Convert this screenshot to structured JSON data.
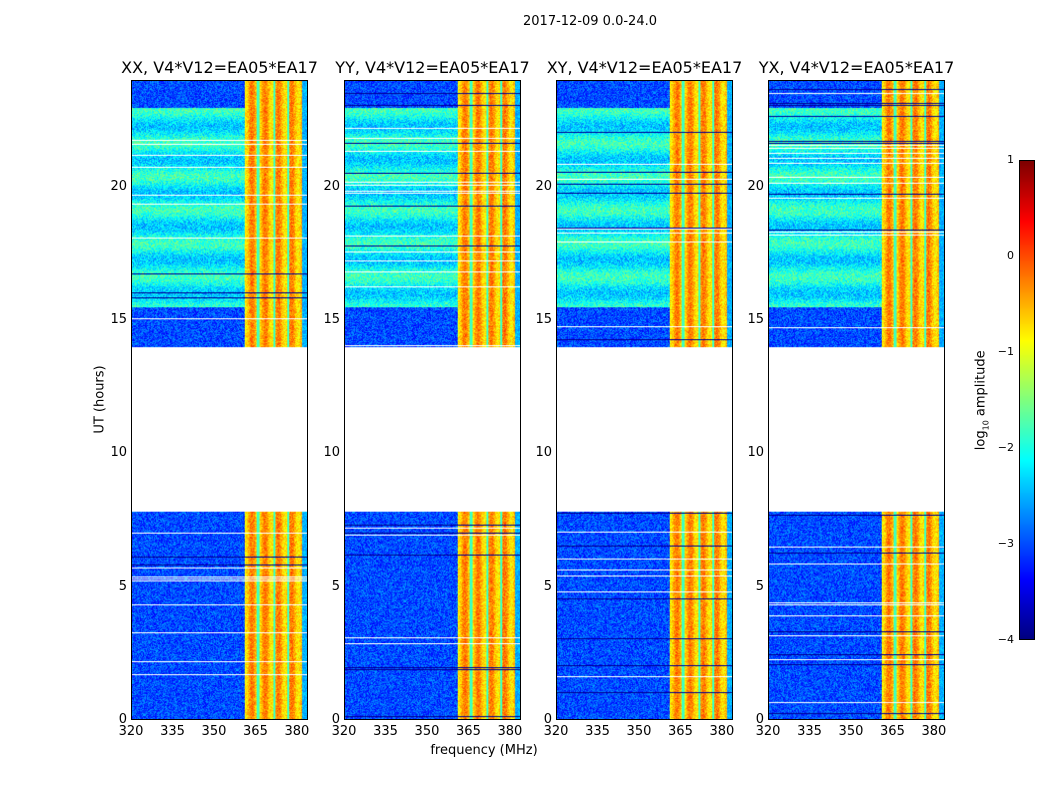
{
  "chart_data": {
    "type": "heatmap",
    "suptitle": "2017-12-09 0.0-24.0",
    "xlabel": "frequency (MHz)",
    "ylabel": "UT (hours)",
    "xlim": [
      320,
      384
    ],
    "ylim": [
      0,
      24
    ],
    "xticks": [
      "320",
      "335",
      "350",
      "365",
      "380"
    ],
    "xtick_values": [
      320,
      335,
      350,
      365,
      380
    ],
    "yticks": [
      "0",
      "5",
      "10",
      "15",
      "20"
    ],
    "ytick_values": [
      0,
      5,
      10,
      15,
      20
    ],
    "panels": [
      {
        "title": "XX, V4*V12=EA05*EA17"
      },
      {
        "title": "YY, V4*V12=EA05*EA17"
      },
      {
        "title": "XY, V4*V12=EA05*EA17"
      },
      {
        "title": "YX, V4*V12=EA05*EA17"
      }
    ],
    "no_data_interval_hours": [
      7.8,
      14.0
    ],
    "bright_band_mhz": [
      361,
      382
    ],
    "background_log10_amplitude": -3,
    "band_log10_amplitude": -0.5,
    "colorbar": {
      "label": "log10 amplitude",
      "label_main": "log",
      "label_sub": "10",
      "label_rest": " amplitude",
      "colormap": "jet",
      "range": [
        -4,
        1
      ],
      "ticks": [
        "1",
        "0",
        "−1",
        "−2",
        "−3",
        "−4"
      ],
      "tick_values": [
        1,
        0,
        -1,
        -2,
        -3,
        -4
      ]
    }
  }
}
